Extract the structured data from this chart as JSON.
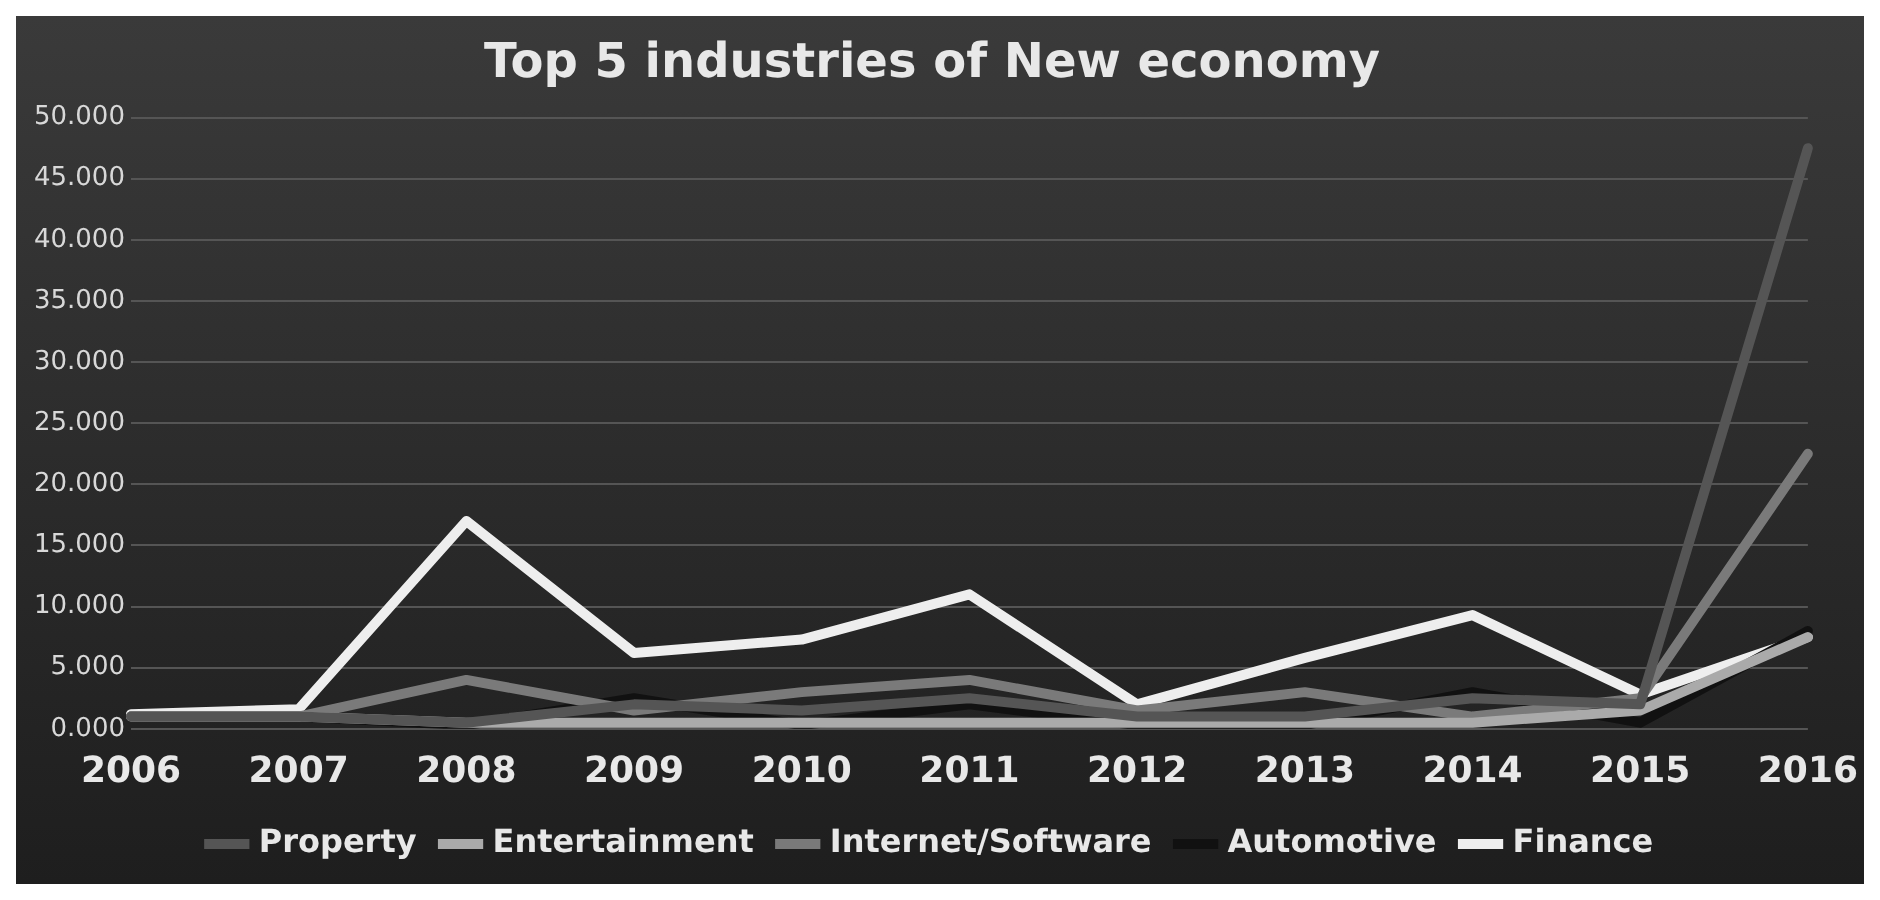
{
  "chart_data": {
    "type": "line",
    "title": "Top 5 industries of New economy",
    "categories": [
      "2006",
      "2007",
      "2008",
      "2009",
      "2010",
      "2011",
      "2012",
      "2013",
      "2014",
      "2015",
      "2016"
    ],
    "series": [
      {
        "name": "Property",
        "color": "#555555",
        "values": [
          1,
          1,
          0.5,
          2,
          1.5,
          2.5,
          1,
          1,
          2.5,
          2,
          47.5
        ]
      },
      {
        "name": "Entertainment",
        "color": "#aaaaaa",
        "values": [
          1,
          1,
          0.5,
          0.5,
          0.5,
          0.5,
          0.5,
          0.5,
          0.5,
          1.5,
          7.5
        ]
      },
      {
        "name": "Internet/Software",
        "color": "#7a7a7a",
        "values": [
          1,
          1,
          4,
          1.5,
          3,
          4,
          1.5,
          3,
          1,
          2.5,
          22.5
        ]
      },
      {
        "name": "Automotive",
        "color": "#111111",
        "values": [
          1,
          1,
          0.3,
          2.5,
          0.3,
          2,
          0.3,
          0.3,
          3,
          0.5,
          8
        ]
      },
      {
        "name": "Finance",
        "color": "#eeeeee",
        "values": [
          1.2,
          1.6,
          17,
          6.2,
          7.3,
          11,
          2,
          5.8,
          9.3,
          2.8,
          7.5
        ]
      }
    ],
    "ylim": [
      0,
      50
    ],
    "yticks": [
      {
        "value": 0,
        "label": "0.000"
      },
      {
        "value": 5,
        "label": "5.000"
      },
      {
        "value": 10,
        "label": "10.000"
      },
      {
        "value": 15,
        "label": "15.000"
      },
      {
        "value": 20,
        "label": "20.000"
      },
      {
        "value": 25,
        "label": "25.000"
      },
      {
        "value": 30,
        "label": "30.000"
      },
      {
        "value": 35,
        "label": "35.000"
      },
      {
        "value": 40,
        "label": "40.000"
      },
      {
        "value": 45,
        "label": "45.000"
      },
      {
        "value": 50,
        "label": "50.000"
      }
    ],
    "grid": "y",
    "legend": "bottom",
    "marker": "none",
    "line_style": "solid"
  }
}
